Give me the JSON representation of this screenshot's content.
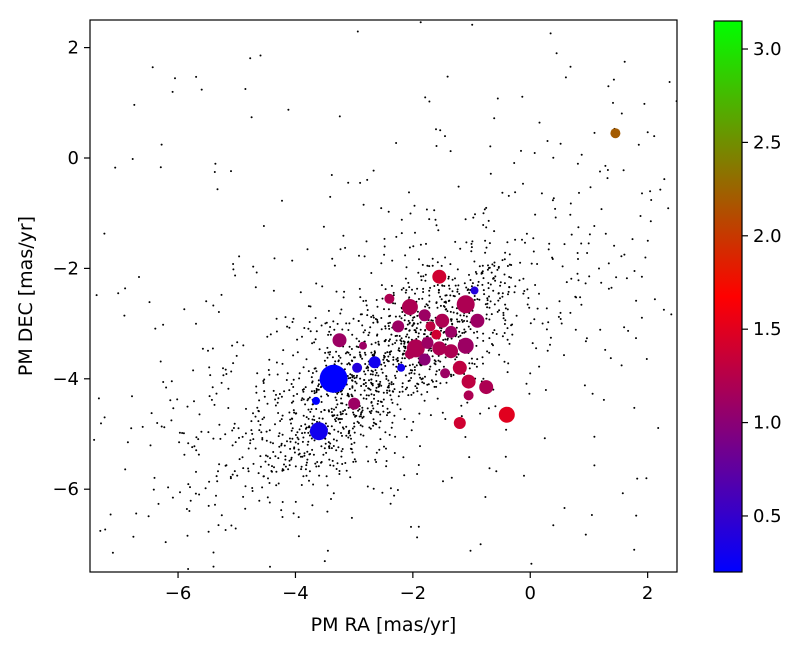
{
  "chart_data": {
    "type": "scatter",
    "title": "",
    "xlabel": "PM RA [mas/yr]",
    "ylabel": "PM DEC [mas/yr]",
    "xlim": [
      -7.5,
      2.5
    ],
    "ylim": [
      -7.5,
      2.5
    ],
    "xticks": [
      {
        "value": -6,
        "label": "−6"
      },
      {
        "value": -4,
        "label": "−4"
      },
      {
        "value": -2,
        "label": "−2"
      },
      {
        "value": 0,
        "label": "0"
      },
      {
        "value": 2,
        "label": "2"
      }
    ],
    "yticks": [
      {
        "value": 2,
        "label": "2"
      },
      {
        "value": 0,
        "label": "0"
      },
      {
        "value": -2,
        "label": "−2"
      },
      {
        "value": -4,
        "label": "−4"
      },
      {
        "value": -6,
        "label": "−6"
      }
    ],
    "grid": false,
    "colorbar": {
      "range": [
        0.2,
        3.15
      ],
      "colors": [
        "#0000ff",
        "#ff0000",
        "#00ff00"
      ],
      "ticks": [
        {
          "value": 0.5,
          "label": "0.5"
        },
        {
          "value": 1.0,
          "label": "1.0"
        },
        {
          "value": 1.5,
          "label": "1.5"
        },
        {
          "value": 2.0,
          "label": "2.0"
        },
        {
          "value": 2.5,
          "label": "2.5"
        },
        {
          "value": 3.0,
          "label": "3.0"
        }
      ]
    },
    "background_stars": {
      "color": "#000000",
      "count": 1700,
      "clusters": [
        {
          "cx": -2.0,
          "cy": -3.3,
          "sx": 0.9,
          "sy": 0.9,
          "n": 650
        },
        {
          "cx": -3.6,
          "cy": -4.9,
          "sx": 0.9,
          "sy": 0.9,
          "n": 450
        },
        {
          "cx": -2.0,
          "cy": -3.0,
          "sx": 2.4,
          "sy": 2.2,
          "n": 600
        }
      ]
    },
    "highlighted_stars": [
      {
        "x": 1.45,
        "y": 0.45,
        "value": 2.2,
        "size": 5
      },
      {
        "x": -3.35,
        "y": -4.0,
        "value": 0.2,
        "size": 14
      },
      {
        "x": -3.6,
        "y": -4.95,
        "value": 0.3,
        "size": 9
      },
      {
        "x": -3.65,
        "y": -4.4,
        "value": 0.2,
        "size": 4
      },
      {
        "x": -2.65,
        "y": -3.7,
        "value": 0.3,
        "size": 6
      },
      {
        "x": -2.95,
        "y": -3.8,
        "value": 0.4,
        "size": 5
      },
      {
        "x": -2.2,
        "y": -3.8,
        "value": 0.3,
        "size": 4
      },
      {
        "x": -0.95,
        "y": -2.4,
        "value": 0.4,
        "size": 4
      },
      {
        "x": -3.25,
        "y": -3.3,
        "value": 1.1,
        "size": 7
      },
      {
        "x": -2.85,
        "y": -3.4,
        "value": 1.1,
        "size": 4
      },
      {
        "x": -2.4,
        "y": -2.55,
        "value": 1.2,
        "size": 5
      },
      {
        "x": -2.05,
        "y": -2.7,
        "value": 1.2,
        "size": 8
      },
      {
        "x": -2.25,
        "y": -3.05,
        "value": 1.1,
        "size": 6
      },
      {
        "x": -1.55,
        "y": -2.15,
        "value": 1.4,
        "size": 7
      },
      {
        "x": -1.1,
        "y": -2.65,
        "value": 1.2,
        "size": 9
      },
      {
        "x": -1.8,
        "y": -2.85,
        "value": 1.1,
        "size": 6
      },
      {
        "x": -1.5,
        "y": -2.95,
        "value": 1.2,
        "size": 7
      },
      {
        "x": -1.35,
        "y": -3.15,
        "value": 1.1,
        "size": 6
      },
      {
        "x": -1.7,
        "y": -3.05,
        "value": 1.3,
        "size": 5
      },
      {
        "x": -1.6,
        "y": -3.2,
        "value": 1.4,
        "size": 5
      },
      {
        "x": -0.9,
        "y": -2.95,
        "value": 1.1,
        "size": 7
      },
      {
        "x": -1.95,
        "y": -3.45,
        "value": 1.2,
        "size": 9
      },
      {
        "x": -1.75,
        "y": -3.35,
        "value": 1.1,
        "size": 6
      },
      {
        "x": -1.55,
        "y": -3.45,
        "value": 1.2,
        "size": 7
      },
      {
        "x": -1.8,
        "y": -3.65,
        "value": 1.0,
        "size": 6
      },
      {
        "x": -1.35,
        "y": -3.5,
        "value": 1.2,
        "size": 7
      },
      {
        "x": -1.1,
        "y": -3.4,
        "value": 1.1,
        "size": 8
      },
      {
        "x": -2.05,
        "y": -3.55,
        "value": 1.2,
        "size": 5
      },
      {
        "x": -1.2,
        "y": -3.8,
        "value": 1.3,
        "size": 7
      },
      {
        "x": -1.45,
        "y": -3.9,
        "value": 1.1,
        "size": 5
      },
      {
        "x": -1.05,
        "y": -4.05,
        "value": 1.3,
        "size": 7
      },
      {
        "x": -0.75,
        "y": -4.15,
        "value": 1.2,
        "size": 7
      },
      {
        "x": -1.05,
        "y": -4.3,
        "value": 1.2,
        "size": 5
      },
      {
        "x": -3.0,
        "y": -4.45,
        "value": 1.1,
        "size": 6
      },
      {
        "x": -1.2,
        "y": -4.8,
        "value": 1.4,
        "size": 6
      },
      {
        "x": -0.4,
        "y": -4.65,
        "value": 1.5,
        "size": 8
      }
    ]
  }
}
